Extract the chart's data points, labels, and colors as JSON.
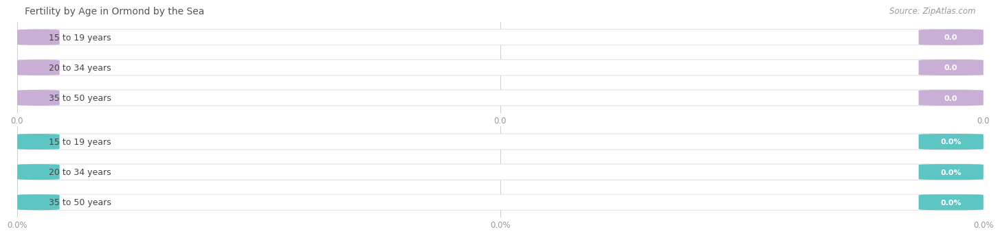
{
  "title": "Fertility by Age in Ormond by the Sea",
  "source": "Source: ZipAtlas.com",
  "top_bars": {
    "categories": [
      "15 to 19 years",
      "20 to 34 years",
      "35 to 50 years"
    ],
    "values": [
      0.0,
      0.0,
      0.0
    ],
    "bar_color": "#c9aed6",
    "value_label": "0.0",
    "xticks": [
      0.0,
      0.5,
      1.0
    ],
    "xticklabels": [
      "0.0",
      "0.0",
      "0.0"
    ]
  },
  "bottom_bars": {
    "categories": [
      "15 to 19 years",
      "20 to 34 years",
      "35 to 50 years"
    ],
    "values": [
      0.0,
      0.0,
      0.0
    ],
    "bar_color": "#5ec5c5",
    "value_label": "0.0%",
    "xticks": [
      0.0,
      0.5,
      1.0
    ],
    "xticklabels": [
      "0.0%",
      "0.0%",
      "0.0%"
    ]
  },
  "background_color": "#ffffff",
  "bar_bg_color": "#efefef",
  "bar_white_color": "#ffffff",
  "title_fontsize": 10,
  "source_fontsize": 8.5,
  "cat_fontsize": 9,
  "val_fontsize": 8,
  "tick_fontsize": 8.5,
  "tick_color": "#999999",
  "cat_text_color": "#444444",
  "val_text_color": "#ffffff",
  "title_color": "#555555",
  "source_color": "#999999"
}
